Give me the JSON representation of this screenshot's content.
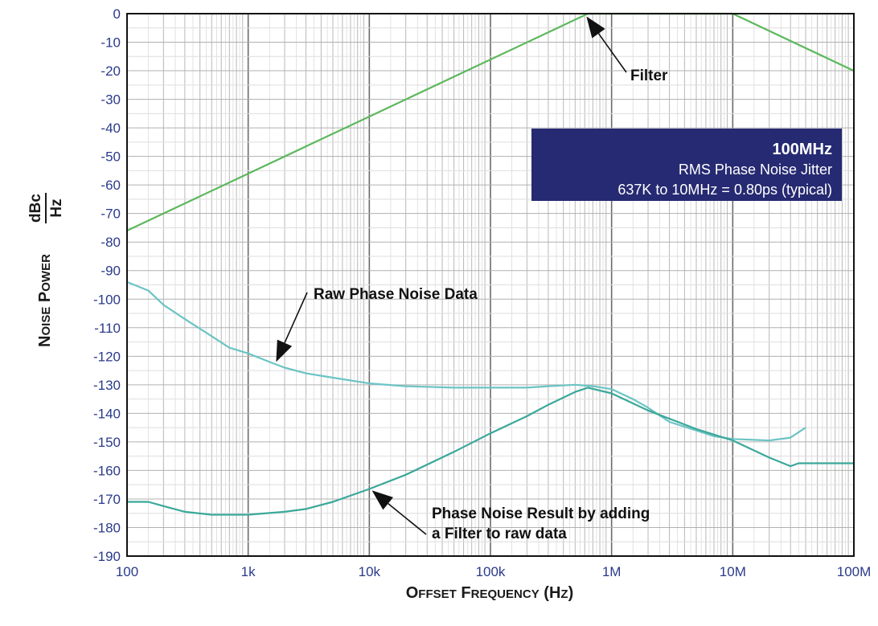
{
  "chart_data": {
    "type": "line",
    "xscale": "log",
    "xlim": [
      100,
      100000000
    ],
    "ylim": [
      -190,
      0
    ],
    "xticks": [
      {
        "value": 100,
        "label": "100"
      },
      {
        "value": 1000,
        "label": "1k"
      },
      {
        "value": 10000,
        "label": "10k"
      },
      {
        "value": 100000,
        "label": "100k"
      },
      {
        "value": 1000000,
        "label": "1M"
      },
      {
        "value": 10000000,
        "label": "10M"
      },
      {
        "value": 100000000,
        "label": "100M"
      }
    ],
    "yticks": [
      0,
      -10,
      -20,
      -30,
      -40,
      -50,
      -60,
      -70,
      -80,
      -90,
      -100,
      -110,
      -120,
      -130,
      -140,
      -150,
      -160,
      -170,
      -180,
      -190
    ],
    "xlabel": "Offset Frequency (Hz)",
    "ylabel_prefix": "Noise Power",
    "ylabel_unit_num": "dBc",
    "ylabel_unit_den": "Hz",
    "grid": true,
    "colors": {
      "filter": "#5cb85c",
      "raw": "#6cc4c4",
      "result": "#3aa89a",
      "axis_text": "#2a3a8c",
      "info_box": "#262a72"
    },
    "series": [
      {
        "key": "filter",
        "x": [
          100,
          637000,
          10000000,
          100000000
        ],
        "y": [
          -76,
          0,
          0,
          -20
        ]
      },
      {
        "key": "raw",
        "x": [
          100,
          150,
          200,
          300,
          500,
          700,
          1000,
          1500,
          2000,
          3000,
          5000,
          10000,
          20000,
          50000,
          100000,
          200000,
          300000,
          500000,
          700000,
          1000000,
          1500000,
          2000000,
          3000000,
          5000000,
          7000000,
          10000000,
          15000000,
          20000000,
          30000000,
          40000000
        ],
        "y": [
          -94,
          -97,
          -102,
          -107,
          -113,
          -117,
          -119,
          -122,
          -124,
          -126,
          -127.5,
          -129.5,
          -130.5,
          -131,
          -131,
          -131,
          -130.5,
          -130,
          -130.5,
          -131.5,
          -135,
          -138,
          -143,
          -146,
          -148,
          -149,
          -149.3,
          -149.5,
          -148.5,
          -145
        ]
      },
      {
        "key": "result",
        "x": [
          100,
          150,
          200,
          300,
          500,
          1000,
          2000,
          3000,
          5000,
          10000,
          20000,
          50000,
          100000,
          200000,
          300000,
          500000,
          637000,
          1000000,
          2000000,
          5000000,
          10000000,
          20000000,
          30000000,
          35000000,
          100000000
        ],
        "y": [
          -171,
          -171,
          -172.5,
          -174.5,
          -175.5,
          -175.5,
          -174.5,
          -173.5,
          -171,
          -166.5,
          -161.5,
          -153.5,
          -147,
          -141,
          -137,
          -132.5,
          -131,
          -133,
          -139,
          -145.5,
          -149.5,
          -155.5,
          -158.5,
          -157.5,
          -157.5
        ]
      }
    ],
    "annotations": [
      {
        "key": "filter",
        "text": "Filter",
        "target": [
          620000,
          -1
        ]
      },
      {
        "key": "raw",
        "text": "Raw Phase Noise Data",
        "target": [
          1700,
          -122
        ]
      },
      {
        "key": "result_1",
        "text": "Phase Noise Result by adding",
        "target": [
          10500,
          -167
        ]
      },
      {
        "key": "result_2",
        "text": "a Filter to raw data"
      }
    ],
    "info_box": {
      "title": "100MHz",
      "line1": "RMS Phase Noise Jitter",
      "line2": "637K to 10MHz = 0.80ps (typical)"
    }
  }
}
